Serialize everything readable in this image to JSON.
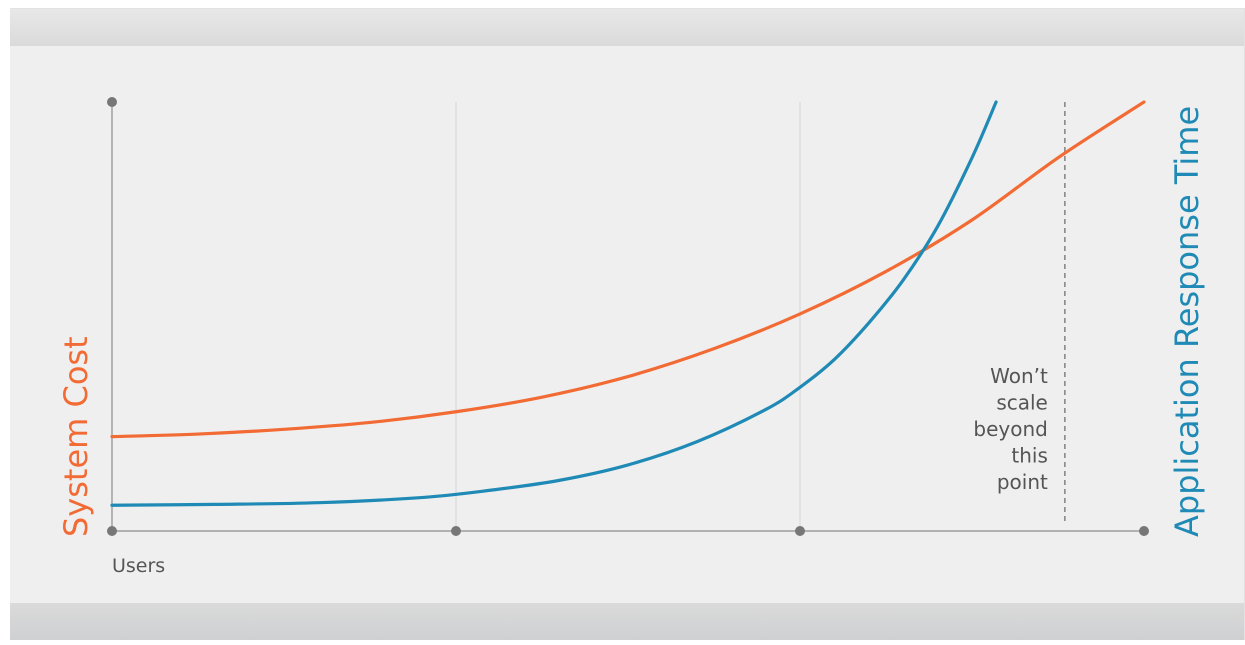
{
  "chart_data": {
    "type": "line",
    "xlabel": "Users",
    "y_left_label": "System Cost",
    "y_right_label": "Application Response Time",
    "annotation": "Won’t scale beyond this point",
    "annotation_lines": [
      "Won’t",
      "scale",
      "beyond",
      "this",
      "point"
    ],
    "x_gridlines": [
      1,
      2,
      3
    ],
    "xlim": [
      0,
      3
    ],
    "ylim": [
      0,
      100
    ],
    "threshold_x": 2.77,
    "grid": true,
    "series": [
      {
        "name": "System Cost",
        "color": "#f26b34",
        "x": [
          0,
          0.25,
          0.5,
          0.75,
          1.0,
          1.25,
          1.5,
          1.75,
          2.0,
          2.25,
          2.5,
          2.75,
          3.0
        ],
        "y": [
          22,
          22.6,
          23.7,
          25.3,
          27.8,
          31.2,
          36.0,
          42.5,
          50.6,
          60.5,
          72.5,
          87.0,
          100
        ]
      },
      {
        "name": "Application Response Time",
        "color": "#1f8ab5",
        "x": [
          0,
          0.3,
          0.6,
          0.9,
          1.1,
          1.3,
          1.5,
          1.7,
          1.9,
          2.0,
          2.1,
          2.2,
          2.3,
          2.4,
          2.5,
          2.57
        ],
        "y": [
          6,
          6.2,
          6.6,
          7.8,
          9.5,
          11.8,
          15.4,
          20.8,
          28.3,
          33.5,
          40.0,
          48.5,
          58.5,
          71.0,
          87.0,
          100
        ]
      }
    ],
    "colors": {
      "system_cost": "#f26b34",
      "response_time": "#1f8ab5",
      "axis": "#8c8c8c",
      "gridline": "#d6d6d6",
      "text": "#555555"
    }
  }
}
